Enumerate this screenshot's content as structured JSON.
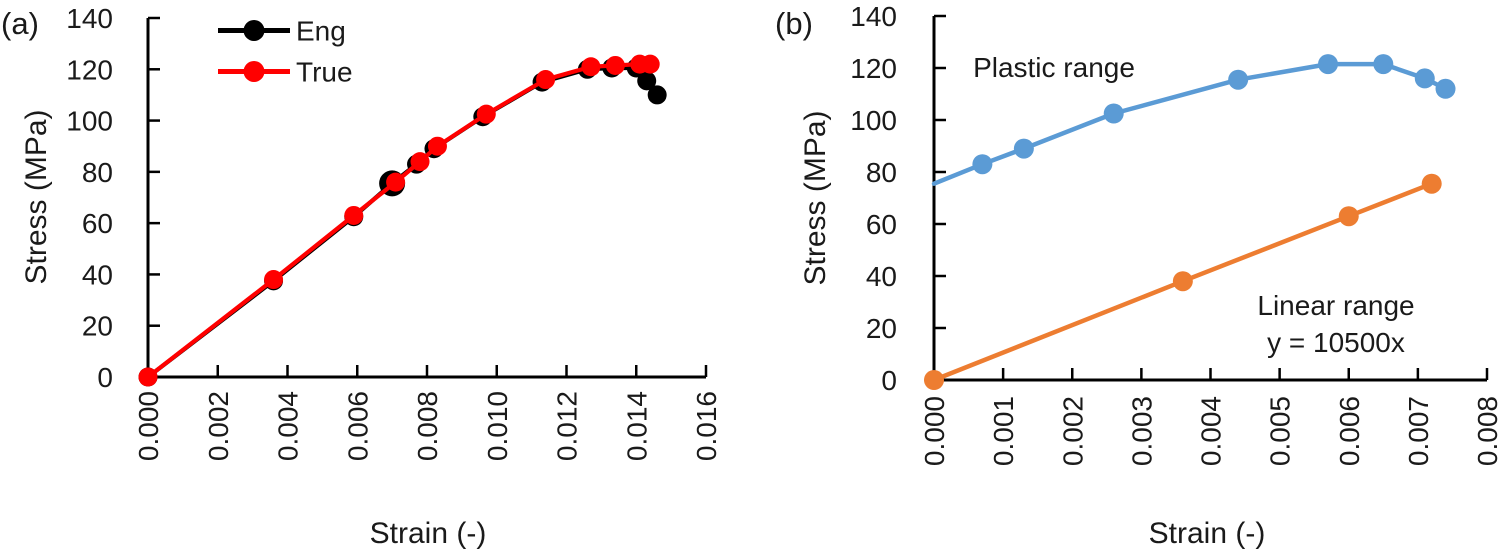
{
  "chart_data": [
    {
      "panel_label": "(a)",
      "type": "line",
      "title": "",
      "xlabel": "Strain (-)",
      "ylabel": "Stress (MPa)",
      "xlim": [
        0,
        0.016
      ],
      "ylim": [
        0,
        140
      ],
      "grid": false,
      "xticks": [
        0,
        0.002,
        0.004,
        0.006,
        0.008,
        0.01,
        0.012,
        0.014,
        0.016
      ],
      "xticklabels": [
        "0.000",
        "0.002",
        "0.004",
        "0.006",
        "0.008",
        "0.010",
        "0.012",
        "0.014",
        "0.016"
      ],
      "yticks": [
        0,
        20,
        40,
        60,
        80,
        100,
        120,
        140
      ],
      "yticklabels": [
        "0",
        "20",
        "40",
        "60",
        "80",
        "100",
        "120",
        "140"
      ],
      "legend": {
        "position": "upper-left-inside",
        "entries": [
          "Eng",
          "True"
        ]
      },
      "series": [
        {
          "name": "Eng",
          "color": "#000000",
          "marker": "circle",
          "x": [
            0,
            0.0036,
            0.0059,
            0.007,
            0.0077,
            0.0082,
            0.0096,
            0.0113,
            0.0126,
            0.0133,
            0.014,
            0.0143,
            0.0146
          ],
          "y": [
            0,
            37.5,
            62.5,
            75.5,
            83,
            89,
            101.5,
            115,
            120,
            120.5,
            120.5,
            115.5,
            110
          ]
        },
        {
          "name": "True",
          "color": "#ff0000",
          "marker": "circle",
          "x": [
            0,
            0.0036,
            0.0059,
            0.0071,
            0.0078,
            0.0083,
            0.0097,
            0.0114,
            0.0127,
            0.0134,
            0.0141,
            0.0144
          ],
          "y": [
            0,
            38,
            63,
            76,
            84,
            90,
            102.5,
            116,
            121,
            121.5,
            122,
            122
          ]
        }
      ]
    },
    {
      "panel_label": "(b)",
      "type": "line",
      "title": "",
      "xlabel": "Strain (-)",
      "ylabel": "Stress (MPa)",
      "xlim": [
        0,
        0.008
      ],
      "ylim": [
        0,
        140
      ],
      "grid": false,
      "xticks": [
        0,
        0.001,
        0.002,
        0.003,
        0.004,
        0.005,
        0.006,
        0.007,
        0.008
      ],
      "xticklabels": [
        "0.000",
        "0.001",
        "0.002",
        "0.003",
        "0.004",
        "0.005",
        "0.006",
        "0.007",
        "0.008"
      ],
      "yticks": [
        0,
        20,
        40,
        60,
        80,
        100,
        120,
        140
      ],
      "yticklabels": [
        "0",
        "20",
        "40",
        "60",
        "80",
        "100",
        "120",
        "140"
      ],
      "annotations": [
        {
          "text": "Plastic range"
        },
        {
          "text": "Linear range"
        },
        {
          "text": "y = 10500x"
        }
      ],
      "series": [
        {
          "name": "Plastic range",
          "color": "#5b9bd5",
          "marker": "circle",
          "line_start": {
            "x": 0,
            "y": 75.5
          },
          "x": [
            0.0007,
            0.0013,
            0.0026,
            0.0044,
            0.0057,
            0.0065,
            0.0071,
            0.0074
          ],
          "y": [
            83,
            89,
            102.5,
            115.5,
            121.5,
            121.5,
            116,
            112
          ]
        },
        {
          "name": "Linear range",
          "color": "#ed7d31",
          "marker": "circle",
          "x": [
            0,
            0.0036,
            0.006,
            0.0072
          ],
          "y": [
            0,
            38,
            63,
            75.5
          ]
        }
      ]
    }
  ]
}
